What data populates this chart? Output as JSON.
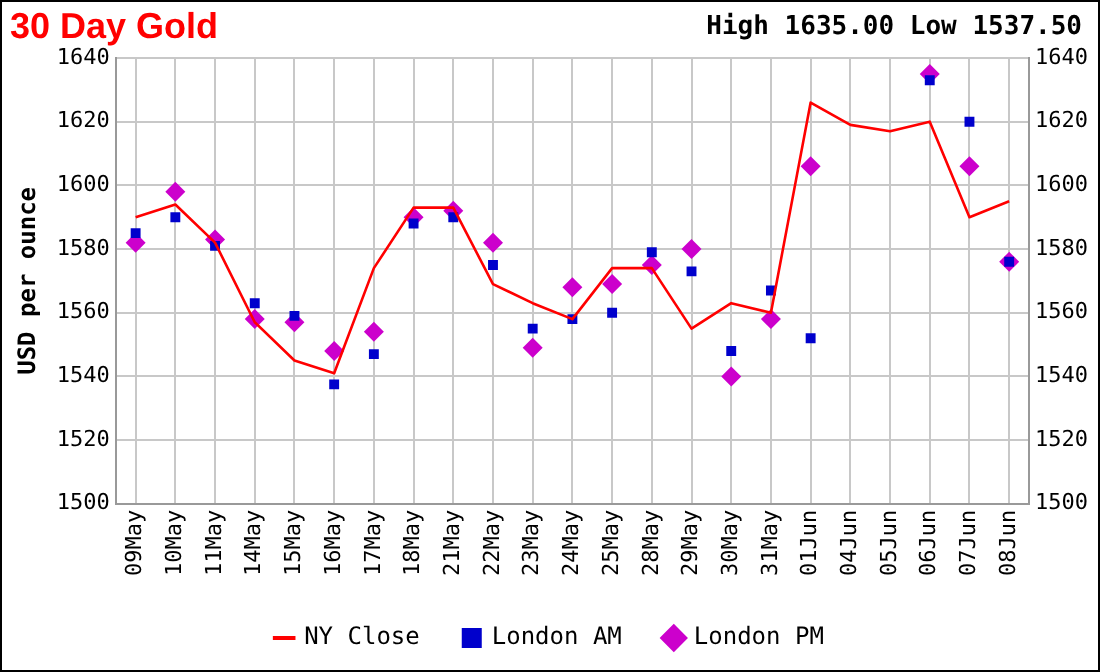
{
  "chart_data": {
    "type": "line",
    "title": "30 Day Gold",
    "subtitle": "High 1635.00 Low 1537.50",
    "ylabel": "USD per ounce",
    "categories": [
      "09May",
      "10May",
      "11May",
      "14May",
      "15May",
      "16May",
      "17May",
      "18May",
      "21May",
      "22May",
      "23May",
      "24May",
      "25May",
      "28May",
      "29May",
      "30May",
      "31May",
      "01Jun",
      "04Jun",
      "05Jun",
      "06Jun",
      "07Jun",
      "08Jun"
    ],
    "series": [
      {
        "name": "NY Close",
        "color": "#ff0000",
        "marker": "none",
        "values": [
          1590,
          1594,
          1582,
          1557,
          1545,
          1541,
          1574,
          1593,
          1593,
          1569,
          1563,
          1558,
          1574,
          1574,
          1555,
          1563,
          1560,
          1626,
          1619,
          1617,
          1620,
          1590,
          1595
        ]
      },
      {
        "name": "London AM",
        "type": "scatter",
        "color": "#0000cc",
        "marker": "square",
        "values": [
          1585,
          1590,
          1581,
          1563,
          1559,
          1537.5,
          1547,
          1588,
          1590,
          1575,
          1555,
          1558,
          1560,
          1579,
          1573,
          1548,
          1567,
          1552,
          null,
          null,
          1633,
          1620,
          1576
        ]
      },
      {
        "name": "London PM",
        "type": "scatter",
        "color": "#cc00cc",
        "marker": "diamond",
        "values": [
          1582,
          1598,
          1583,
          1558,
          1557,
          1548,
          1554,
          1590,
          1592,
          1582,
          1549,
          1568,
          1569,
          1575,
          1580,
          1540,
          1558,
          1606,
          null,
          null,
          1635,
          1606,
          1576
        ]
      }
    ],
    "ylim": [
      1500,
      1640
    ],
    "yticks": [
      1500,
      1520,
      1540,
      1560,
      1580,
      1600,
      1620,
      1640
    ],
    "y2lim": [
      1500,
      1640
    ],
    "y2ticks": [
      1500,
      1520,
      1540,
      1560,
      1580,
      1600,
      1620,
      1640
    ],
    "grid": true,
    "legend": "bottom"
  }
}
